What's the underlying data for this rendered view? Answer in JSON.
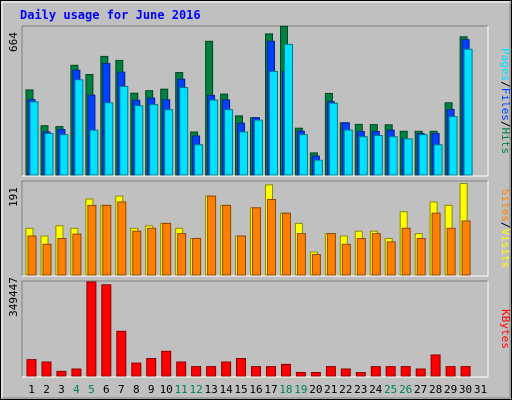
{
  "title": "Daily usage for June 2016",
  "colors": {
    "background": "#c0c0c0",
    "title": "#0000ff",
    "hits": "#008040",
    "files": "#0040ff",
    "pages": "#00e0ff",
    "visits": "#ffff00",
    "sites": "#ff8000",
    "kbytes": "#ff0000",
    "weekend_day": "#00805c",
    "weekday": "#000000"
  },
  "chart_data": [
    {
      "type": "bar",
      "name": "hits-files-pages",
      "max_label": "664",
      "ylim": [
        0,
        664
      ],
      "legend": [
        {
          "label": "Pages",
          "color": "#00e0ff"
        },
        {
          "label": "/",
          "color": "#000000"
        },
        {
          "label": "Files",
          "color": "#0040ff"
        },
        {
          "label": "/",
          "color": "#000000"
        },
        {
          "label": "Hits",
          "color": "#008040"
        }
      ],
      "categories": [
        "1",
        "2",
        "3",
        "4",
        "5",
        "6",
        "7",
        "8",
        "9",
        "10",
        "11",
        "12",
        "13",
        "14",
        "15",
        "16",
        "17",
        "18",
        "19",
        "20",
        "21",
        "22",
        "23",
        "24",
        "25",
        "26",
        "27",
        "28",
        "29",
        "30",
        "31"
      ],
      "series": [
        {
          "name": "Hits",
          "values": [
            382,
            221,
            217,
            492,
            451,
            532,
            514,
            367,
            378,
            385,
            460,
            193,
            600,
            363,
            265,
            257,
            633,
            667,
            210,
            99,
            366,
            234,
            227,
            226,
            225,
            196,
            196,
            196,
            324,
            620,
            0
          ]
        },
        {
          "name": "Files",
          "values": [
            338,
            193,
            204,
            470,
            358,
            500,
            461,
            335,
            345,
            338,
            430,
            175,
            357,
            337,
            232,
            257,
            600,
            465,
            196,
            85,
            329,
            234,
            195,
            195,
            201,
            162,
            186,
            186,
            294,
            607,
            0
          ]
        },
        {
          "name": "Pages",
          "values": [
            328,
            186,
            181,
            427,
            201,
            324,
            397,
            311,
            316,
            293,
            392,
            136,
            336,
            293,
            193,
            246,
            465,
            586,
            181,
            66,
            322,
            202,
            172,
            177,
            172,
            162,
            181,
            136,
            262,
            564,
            0
          ]
        }
      ]
    },
    {
      "type": "bar",
      "name": "visits-sites",
      "max_label": "191",
      "ylim": [
        0,
        191
      ],
      "legend": [
        {
          "label": "Sites",
          "color": "#ff8000"
        },
        {
          "label": "/",
          "color": "#000000"
        },
        {
          "label": "Visits",
          "color": "#ffff00"
        }
      ],
      "categories": [
        "1",
        "2",
        "3",
        "4",
        "5",
        "6",
        "7",
        "8",
        "9",
        "10",
        "11",
        "12",
        "13",
        "14",
        "15",
        "16",
        "17",
        "18",
        "19",
        "20",
        "21",
        "22",
        "23",
        "24",
        "25",
        "26",
        "27",
        "28",
        "29",
        "30",
        "31"
      ],
      "series": [
        {
          "name": "Visits",
          "values": [
            96,
            80,
            101,
            96,
            156,
            143,
            162,
            96,
            101,
            106,
            96,
            75,
            162,
            143,
            80,
            138,
            185,
            127,
            106,
            47,
            85,
            80,
            90,
            90,
            75,
            130,
            85,
            150,
            143,
            188,
            0
          ]
        },
        {
          "name": "Sites",
          "values": [
            80,
            63,
            75,
            84,
            143,
            143,
            150,
            90,
            96,
            106,
            85,
            75,
            162,
            143,
            80,
            138,
            155,
            127,
            85,
            42,
            85,
            63,
            75,
            85,
            68,
            96,
            75,
            127,
            96,
            111,
            0
          ]
        }
      ]
    },
    {
      "type": "bar",
      "name": "kbytes",
      "max_label": "349447",
      "ylim": [
        0,
        349447
      ],
      "legend": [
        {
          "label": "KBytes",
          "color": "#ff0000"
        }
      ],
      "categories": [
        "1",
        "2",
        "3",
        "4",
        "5",
        "6",
        "7",
        "8",
        "9",
        "10",
        "11",
        "12",
        "13",
        "14",
        "15",
        "16",
        "17",
        "18",
        "19",
        "20",
        "21",
        "22",
        "23",
        "24",
        "25",
        "26",
        "27",
        "28",
        "29",
        "30",
        "31"
      ],
      "series": [
        {
          "name": "KBytes",
          "values": [
            61000,
            52000,
            17000,
            26000,
            349447,
            339000,
            166000,
            48000,
            65000,
            92000,
            52000,
            35000,
            35000,
            52000,
            65000,
            35000,
            35000,
            43000,
            13000,
            13000,
            35000,
            26000,
            13000,
            35000,
            35000,
            35000,
            26000,
            78000,
            35000,
            35000,
            0
          ]
        }
      ]
    }
  ]
}
